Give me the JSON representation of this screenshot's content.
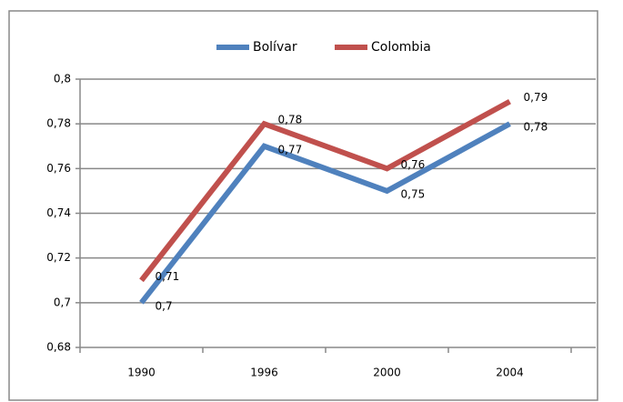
{
  "chart_data": {
    "type": "line",
    "categories": [
      "1990",
      "1996",
      "2000",
      "2004"
    ],
    "series": [
      {
        "name": "Bolívar",
        "color": "#4f81bd",
        "values": [
          0.7,
          0.77,
          0.75,
          0.78
        ],
        "value_labels": [
          "0,7",
          "0,77",
          "0,75",
          "0,78"
        ]
      },
      {
        "name": "Colombia",
        "color": "#c0504d",
        "values": [
          0.71,
          0.78,
          0.76,
          0.79
        ],
        "value_labels": [
          "0,71",
          "0,78",
          "0,76",
          "0,79"
        ]
      }
    ],
    "ylim": [
      0.68,
      0.8
    ],
    "yticks": [
      {
        "value": 0.68,
        "label": "0,68"
      },
      {
        "value": 0.7,
        "label": "0,7"
      },
      {
        "value": 0.72,
        "label": "0,72"
      },
      {
        "value": 0.74,
        "label": "0,74"
      },
      {
        "value": 0.76,
        "label": "0,76"
      },
      {
        "value": 0.78,
        "label": "0,78"
      },
      {
        "value": 0.8,
        "label": "0,8"
      }
    ],
    "grid": true,
    "legend": "top"
  }
}
